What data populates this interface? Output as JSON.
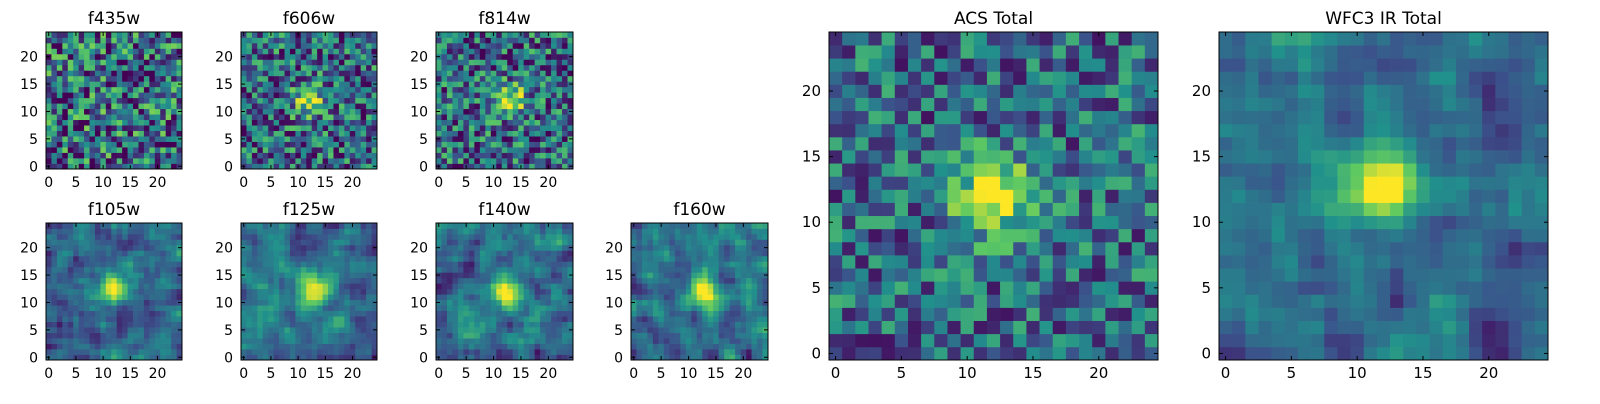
{
  "chart_data": [
    {
      "type": "heatmap",
      "title": "f435w",
      "xticks": [
        0,
        5,
        10,
        15,
        20
      ],
      "yticks": [
        0,
        5,
        10,
        15,
        20
      ],
      "xlim": [
        -0.5,
        24.5
      ],
      "ylim": [
        -0.5,
        24.5
      ],
      "grid_size": 25,
      "colormap": "viridis",
      "seed": 11,
      "blob": {
        "x": 12,
        "y": 8,
        "amp": 0.05
      },
      "noise": 0.9
    },
    {
      "type": "heatmap",
      "title": "f606w",
      "xticks": [
        0,
        5,
        10,
        15,
        20
      ],
      "yticks": [
        0,
        5,
        10,
        15,
        20
      ],
      "xlim": [
        -0.5,
        24.5
      ],
      "ylim": [
        -0.5,
        24.5
      ],
      "grid_size": 25,
      "colormap": "viridis",
      "seed": 23,
      "blob": {
        "x": 12,
        "y": 12,
        "amp": 0.55
      },
      "noise": 0.75
    },
    {
      "type": "heatmap",
      "title": "f814w",
      "xticks": [
        0,
        5,
        10,
        15,
        20
      ],
      "yticks": [
        0,
        5,
        10,
        15,
        20
      ],
      "xlim": [
        -0.5,
        24.5
      ],
      "ylim": [
        -0.5,
        24.5
      ],
      "grid_size": 25,
      "colormap": "viridis",
      "seed": 37,
      "blob": {
        "x": 13,
        "y": 12,
        "amp": 0.6
      },
      "noise": 0.75
    },
    {
      "type": "heatmap",
      "title": "f105w",
      "xticks": [
        0,
        5,
        10,
        15,
        20
      ],
      "yticks": [
        0,
        5,
        10,
        15,
        20
      ],
      "xlim": [
        -0.5,
        24.5
      ],
      "ylim": [
        -0.5,
        24.5
      ],
      "grid_size": 25,
      "colormap": "viridis",
      "seed": 41,
      "blob": {
        "x": 12,
        "y": 13,
        "amp": 0.7
      },
      "noise": 0.55,
      "smooth": true
    },
    {
      "type": "heatmap",
      "title": "f125w",
      "xticks": [
        0,
        5,
        10,
        15,
        20
      ],
      "yticks": [
        0,
        5,
        10,
        15,
        20
      ],
      "xlim": [
        -0.5,
        24.5
      ],
      "ylim": [
        -0.5,
        24.5
      ],
      "grid_size": 25,
      "colormap": "viridis",
      "seed": 53,
      "blob": {
        "x": 13,
        "y": 12,
        "amp": 0.65
      },
      "noise": 0.55,
      "smooth": true
    },
    {
      "type": "heatmap",
      "title": "f140w",
      "xticks": [
        0,
        5,
        10,
        15,
        20
      ],
      "yticks": [
        0,
        5,
        10,
        15,
        20
      ],
      "xlim": [
        -0.5,
        24.5
      ],
      "ylim": [
        -0.5,
        24.5
      ],
      "grid_size": 25,
      "colormap": "viridis",
      "seed": 67,
      "blob": {
        "x": 12,
        "y": 12,
        "amp": 0.6
      },
      "noise": 0.6,
      "smooth": true
    },
    {
      "type": "heatmap",
      "title": "f160w",
      "xticks": [
        0,
        5,
        10,
        15,
        20
      ],
      "yticks": [
        0,
        5,
        10,
        15,
        20
      ],
      "xlim": [
        -0.5,
        24.5
      ],
      "ylim": [
        -0.5,
        24.5
      ],
      "grid_size": 25,
      "colormap": "viridis",
      "seed": 79,
      "blob": {
        "x": 13,
        "y": 12,
        "amp": 0.7
      },
      "noise": 0.6,
      "smooth": true
    },
    {
      "type": "heatmap",
      "title": "ACS Total",
      "xticks": [
        0,
        5,
        10,
        15,
        20
      ],
      "yticks": [
        0,
        5,
        10,
        15,
        20
      ],
      "xlim": [
        -0.5,
        24.5
      ],
      "ylim": [
        -0.5,
        24.5
      ],
      "grid_size": 25,
      "colormap": "viridis",
      "seed": 97,
      "blob": {
        "x": 12,
        "y": 12,
        "amp": 0.75
      },
      "noise": 0.6
    },
    {
      "type": "heatmap",
      "title": "WFC3 IR Total",
      "xticks": [
        0,
        5,
        10,
        15,
        20
      ],
      "yticks": [
        0,
        5,
        10,
        15,
        20
      ],
      "xlim": [
        -0.5,
        24.5
      ],
      "ylim": [
        -0.5,
        24.5
      ],
      "grid_size": 25,
      "colormap": "viridis",
      "seed": 131,
      "blob": {
        "x": 12,
        "y": 13,
        "amp": 0.8
      },
      "noise": 0.5,
      "smooth": true
    }
  ],
  "colormap_stops": [
    "#440154",
    "#3b528b",
    "#21918c",
    "#5ec962",
    "#fde725"
  ]
}
